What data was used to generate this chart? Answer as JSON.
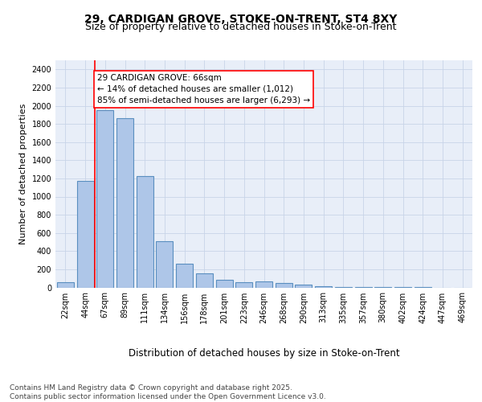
{
  "title_line1": "29, CARDIGAN GROVE, STOKE-ON-TRENT, ST4 8XY",
  "title_line2": "Size of property relative to detached houses in Stoke-on-Trent",
  "xlabel": "Distribution of detached houses by size in Stoke-on-Trent",
  "ylabel": "Number of detached properties",
  "categories": [
    "22sqm",
    "44sqm",
    "67sqm",
    "89sqm",
    "111sqm",
    "134sqm",
    "156sqm",
    "178sqm",
    "201sqm",
    "223sqm",
    "246sqm",
    "268sqm",
    "290sqm",
    "313sqm",
    "335sqm",
    "357sqm",
    "380sqm",
    "402sqm",
    "424sqm",
    "447sqm",
    "469sqm"
  ],
  "values": [
    55,
    1170,
    1950,
    1860,
    1230,
    510,
    265,
    155,
    80,
    55,
    65,
    50,
    30,
    15,
    5,
    3,
    2,
    1,
    1,
    0,
    0
  ],
  "bar_color": "#aec6e8",
  "bar_edge_color": "#5a8fc0",
  "bar_linewidth": 0.8,
  "annotation_box_text": "29 CARDIGAN GROVE: 66sqm\n← 14% of detached houses are smaller (1,012)\n85% of semi-detached houses are larger (6,293) →",
  "annotation_box_color": "white",
  "annotation_box_edge_color": "red",
  "vline_color": "red",
  "vline_linewidth": 1.2,
  "grid_color": "#c8d4e8",
  "background_color": "#e8eef8",
  "ylim": [
    0,
    2500
  ],
  "yticks": [
    0,
    200,
    400,
    600,
    800,
    1000,
    1200,
    1400,
    1600,
    1800,
    2000,
    2200,
    2400
  ],
  "footer_text": "Contains HM Land Registry data © Crown copyright and database right 2025.\nContains public sector information licensed under the Open Government Licence v3.0.",
  "title_fontsize": 10,
  "subtitle_fontsize": 9,
  "xlabel_fontsize": 8.5,
  "ylabel_fontsize": 8,
  "tick_fontsize": 7,
  "annotation_fontsize": 7.5,
  "footer_fontsize": 6.5
}
